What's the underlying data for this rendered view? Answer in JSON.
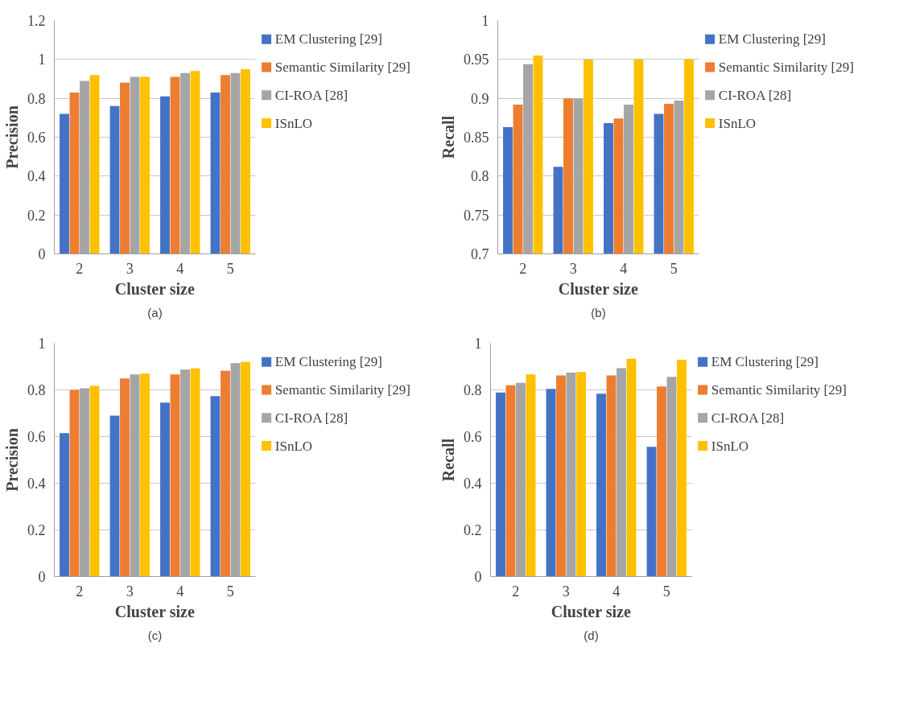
{
  "chart_data": [
    {
      "type": "bar",
      "xlabel": "Cluster size",
      "ylabel": "Precision",
      "annotations": [
        "(a)"
      ],
      "categories": [
        "2",
        "3",
        "4",
        "5"
      ],
      "ylim": [
        0,
        1.2
      ],
      "yticks": [
        0,
        0.2,
        0.4,
        0.6,
        0.8,
        1,
        1.2
      ],
      "grid": "y",
      "legend": "right",
      "series": [
        {
          "name": "EM Clustering [29]",
          "color": "#4472c4",
          "values": [
            0.72,
            0.76,
            0.81,
            0.83
          ]
        },
        {
          "name": "Semantic Similarity [29]",
          "color": "#ed7d31",
          "values": [
            0.83,
            0.88,
            0.91,
            0.92
          ]
        },
        {
          "name": "CI-ROA [28]",
          "color": "#a5a5a5",
          "values": [
            0.89,
            0.91,
            0.93,
            0.93
          ]
        },
        {
          "name": "ISnLO",
          "color": "#ffc000",
          "values": [
            0.92,
            0.91,
            0.94,
            0.95
          ]
        }
      ]
    },
    {
      "type": "bar",
      "xlabel": "Cluster size",
      "ylabel": "Recall",
      "annotations": [
        "(b)"
      ],
      "categories": [
        "2",
        "3",
        "4",
        "5"
      ],
      "ylim": [
        0.7,
        1
      ],
      "yticks": [
        0.7,
        0.75,
        0.8,
        0.85,
        0.9,
        0.95,
        1
      ],
      "grid": "y",
      "legend": "right",
      "series": [
        {
          "name": "EM Clustering [29]",
          "color": "#4472c4",
          "values": [
            0.863,
            0.812,
            0.868,
            0.88
          ]
        },
        {
          "name": "Semantic Similarity [29]",
          "color": "#ed7d31",
          "values": [
            0.892,
            0.9,
            0.874,
            0.893
          ]
        },
        {
          "name": "CI-ROA [28]",
          "color": "#a5a5a5",
          "values": [
            0.944,
            0.9,
            0.892,
            0.897
          ]
        },
        {
          "name": "ISnLO",
          "color": "#ffc000",
          "values": [
            0.955,
            0.95,
            0.95,
            0.95
          ]
        }
      ]
    },
    {
      "type": "bar",
      "xlabel": "Cluster size",
      "ylabel": "Precision",
      "annotations": [
        "(c)"
      ],
      "categories": [
        "2",
        "3",
        "4",
        "5"
      ],
      "ylim": [
        0,
        1
      ],
      "yticks": [
        0,
        0.2,
        0.4,
        0.6,
        0.8,
        1
      ],
      "grid": "y",
      "legend": "right",
      "series": [
        {
          "name": "EM Clustering [29]",
          "color": "#4472c4",
          "values": [
            0.615,
            0.69,
            0.746,
            0.773
          ]
        },
        {
          "name": "Semantic Similarity [29]",
          "color": "#ed7d31",
          "values": [
            0.8,
            0.849,
            0.866,
            0.882
          ]
        },
        {
          "name": "CI-ROA [28]",
          "color": "#a5a5a5",
          "values": [
            0.807,
            0.866,
            0.887,
            0.915
          ]
        },
        {
          "name": "ISnLO",
          "color": "#ffc000",
          "values": [
            0.817,
            0.87,
            0.892,
            0.92
          ]
        }
      ]
    },
    {
      "type": "bar",
      "xlabel": "Cluster size",
      "ylabel": "Recall",
      "annotations": [
        "(d)"
      ],
      "categories": [
        "2",
        "3",
        "4",
        "5"
      ],
      "ylim": [
        0,
        1
      ],
      "yticks": [
        0,
        0.2,
        0.4,
        0.6,
        0.8,
        1
      ],
      "grid": "y",
      "legend": "right",
      "series": [
        {
          "name": "EM Clustering [29]",
          "color": "#4472c4",
          "values": [
            0.789,
            0.804,
            0.784,
            0.556
          ]
        },
        {
          "name": "Semantic Similarity [29]",
          "color": "#ed7d31",
          "values": [
            0.82,
            0.862,
            0.862,
            0.815
          ]
        },
        {
          "name": "CI-ROA [28]",
          "color": "#a5a5a5",
          "values": [
            0.83,
            0.874,
            0.893,
            0.856
          ]
        },
        {
          "name": "ISnLO",
          "color": "#ffc000",
          "values": [
            0.866,
            0.877,
            0.934,
            0.929
          ]
        }
      ]
    }
  ]
}
